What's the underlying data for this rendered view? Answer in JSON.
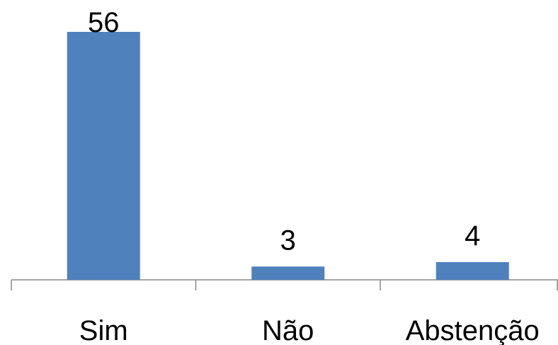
{
  "chart_data": {
    "type": "bar",
    "categories": [
      "Sim",
      "Não",
      "Abstenção"
    ],
    "values": [
      56,
      3,
      4
    ],
    "color": "#4f81bd"
  }
}
